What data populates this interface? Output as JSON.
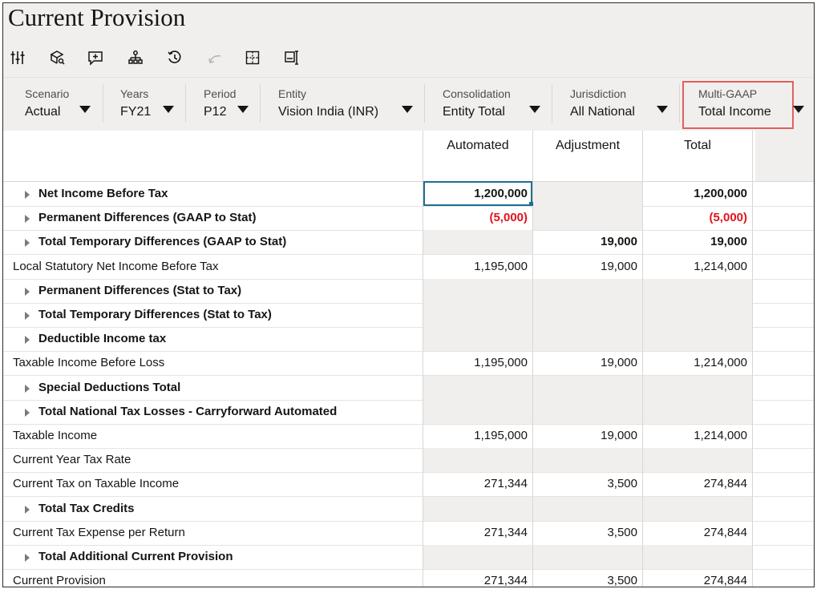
{
  "page": {
    "title": "Current Provision"
  },
  "toolbar": {
    "icons": [
      "adjust-sliders-icon",
      "cube-search-icon",
      "comment-icon",
      "hierarchy-icon",
      "history-icon",
      "undo-icon",
      "grid-select-icon",
      "form-layout-icon"
    ]
  },
  "pov": {
    "scenario": {
      "label": "Scenario",
      "value": "Actual"
    },
    "years": {
      "label": "Years",
      "value": "FY21"
    },
    "period": {
      "label": "Period",
      "value": "P12"
    },
    "entity": {
      "label": "Entity",
      "value": "Vision India (INR)"
    },
    "consolidation": {
      "label": "Consolidation",
      "value": "Entity Total"
    },
    "jurisdiction": {
      "label": "Jurisdiction",
      "value": "All National"
    },
    "multigaap": {
      "label": "Multi-GAAP",
      "value": "Total Income"
    },
    "highlight_color": "#e06060"
  },
  "columns": {
    "automated": "Automated",
    "adjustment": "Adjustment",
    "total": "Total"
  },
  "rows": [
    {
      "label": "Net Income Before Tax",
      "bold": true,
      "expandable": true,
      "automated": "1,200,000",
      "adjustment": "",
      "total": "1,200,000"
    },
    {
      "label": "Permanent Differences (GAAP to Stat)",
      "bold": true,
      "expandable": true,
      "automated": "(5,000)",
      "adjustment": "",
      "total": "(5,000)"
    },
    {
      "label": "Total Temporary Differences (GAAP to Stat)",
      "bold": true,
      "expandable": true,
      "automated": "",
      "adjustment": "19,000",
      "total": "19,000"
    },
    {
      "label": "Local Statutory Net Income Before Tax",
      "bold": false,
      "expandable": false,
      "automated": "1,195,000",
      "adjustment": "19,000",
      "total": "1,214,000"
    },
    {
      "label": "Permanent Differences (Stat to Tax)",
      "bold": true,
      "expandable": true,
      "automated": "",
      "adjustment": "",
      "total": ""
    },
    {
      "label": "Total Temporary Differences (Stat to Tax)",
      "bold": true,
      "expandable": true,
      "automated": "",
      "adjustment": "",
      "total": ""
    },
    {
      "label": "Deductible Income tax",
      "bold": true,
      "expandable": true,
      "automated": "",
      "adjustment": "",
      "total": ""
    },
    {
      "label": "Taxable Income Before Loss",
      "bold": false,
      "expandable": false,
      "automated": "1,195,000",
      "adjustment": "19,000",
      "total": "1,214,000"
    },
    {
      "label": "Special Deductions Total",
      "bold": true,
      "expandable": true,
      "automated": "",
      "adjustment": "",
      "total": ""
    },
    {
      "label": "Total National Tax Losses - Carryforward Automated",
      "bold": true,
      "expandable": true,
      "automated": "",
      "adjustment": "",
      "total": ""
    },
    {
      "label": "Taxable Income",
      "bold": false,
      "expandable": false,
      "automated": "1,195,000",
      "adjustment": "19,000",
      "total": "1,214,000"
    },
    {
      "label": "Current Year Tax Rate",
      "bold": false,
      "expandable": false,
      "automated": "",
      "adjustment": "",
      "total": ""
    },
    {
      "label": "Current Tax on Taxable Income",
      "bold": false,
      "expandable": false,
      "automated": "271,344",
      "adjustment": "3,500",
      "total": "274,844"
    },
    {
      "label": "Total Tax Credits",
      "bold": true,
      "expandable": true,
      "automated": "",
      "adjustment": "",
      "total": ""
    },
    {
      "label": "Current Tax Expense per Return",
      "bold": false,
      "expandable": false,
      "automated": "271,344",
      "adjustment": "3,500",
      "total": "274,844"
    },
    {
      "label": "Total Additional Current Provision",
      "bold": true,
      "expandable": true,
      "automated": "",
      "adjustment": "",
      "total": ""
    },
    {
      "label": "Current Provision",
      "bold": false,
      "expandable": false,
      "automated": "271,344",
      "adjustment": "3,500",
      "total": "274,844"
    }
  ]
}
